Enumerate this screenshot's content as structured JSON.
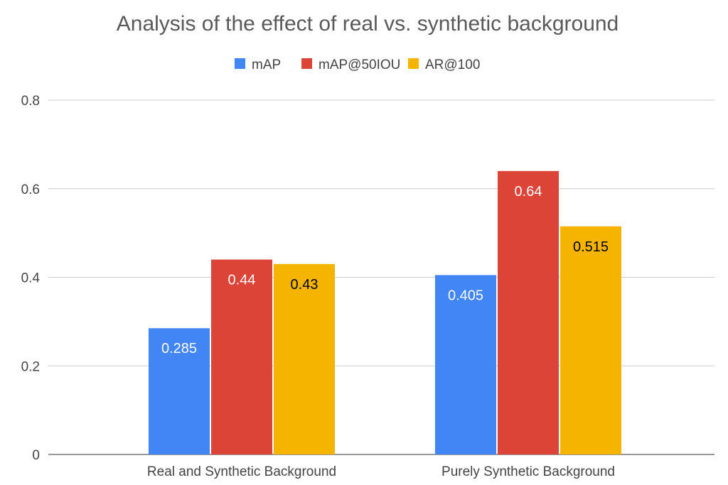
{
  "chart_data": {
    "type": "bar",
    "title": "Analysis of the effect of real vs. synthetic background",
    "xlabel": "",
    "ylabel": "",
    "categories": [
      "Real and Synthetic Background",
      "Purely Synthetic Background"
    ],
    "series": [
      {
        "name": "mAP",
        "color": "#4285f4",
        "label_color": "#ffffff",
        "values": [
          0.285,
          0.405
        ]
      },
      {
        "name": "mAP@50IOU",
        "color": "#db4437",
        "label_color": "#ffffff",
        "values": [
          0.44,
          0.64
        ]
      },
      {
        "name": "AR@100",
        "color": "#f4b400",
        "label_color": "#000000",
        "values": [
          0.43,
          0.515
        ]
      }
    ],
    "ylim": [
      0,
      0.8
    ],
    "yticks": [
      "0",
      "0.2",
      "0.4",
      "0.6",
      "0.8"
    ],
    "grid": true,
    "legend_position": "top-center"
  }
}
